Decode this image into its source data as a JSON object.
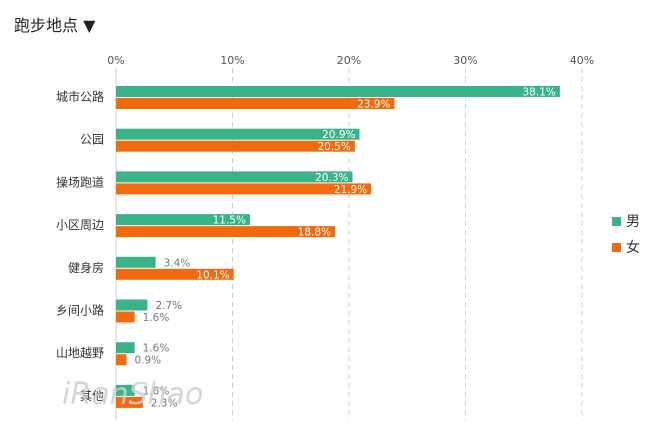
{
  "header": {
    "title": "跑步地点",
    "dropdown_glyph": "▼"
  },
  "watermark": {
    "text": "iRanShao"
  },
  "colors": {
    "male": "#3bb38a",
    "female": "#f26a0e",
    "grid": "#cfcfcf"
  },
  "chart_data": {
    "type": "bar",
    "orientation": "horizontal",
    "title": "跑步地点",
    "categories": [
      "城市公路",
      "公园",
      "操场跑道",
      "小区周边",
      "健身房",
      "乡间小路",
      "山地越野",
      "其他"
    ],
    "series": [
      {
        "name": "男",
        "values": [
          38.1,
          20.9,
          20.3,
          11.5,
          3.4,
          2.7,
          1.6,
          1.6
        ],
        "labels": [
          "38.1%",
          "20.9%",
          "20.3%",
          "11.5%",
          "3.4%",
          "2.7%",
          "1.6%",
          "1.6%"
        ]
      },
      {
        "name": "女",
        "values": [
          23.9,
          20.5,
          21.9,
          18.8,
          10.1,
          1.6,
          0.9,
          2.3
        ],
        "labels": [
          "23.9%",
          "20.5%",
          "21.9%",
          "18.8%",
          "10.1%",
          "1.6%",
          "0.9%",
          "2.3%"
        ]
      }
    ],
    "xlim": [
      0,
      40
    ],
    "xticks": [
      0,
      10,
      20,
      30,
      40
    ],
    "xtick_labels": [
      "0%",
      "10%",
      "20%",
      "30%",
      "40%"
    ],
    "grid": true,
    "legend": {
      "position": "right",
      "entries": [
        "男",
        "女"
      ]
    }
  }
}
